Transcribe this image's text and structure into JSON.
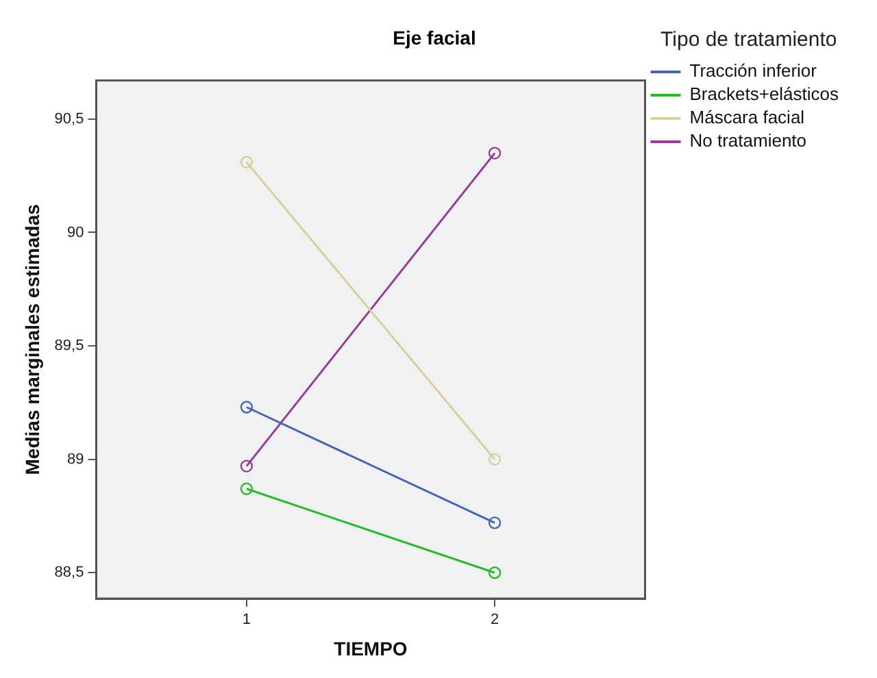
{
  "chart_data": {
    "type": "line",
    "title": "Eje facial",
    "xlabel": "TIEMPO",
    "ylabel": "Medias marginales estimadas",
    "legend_title": "Tipo de tratamiento",
    "x": [
      1,
      2
    ],
    "xlim": [
      0.394,
      2.606
    ],
    "xticks": [
      1,
      2
    ],
    "ylim": [
      88.386,
      90.67
    ],
    "yticks": [
      {
        "value": 88.5,
        "label": "88,5"
      },
      {
        "value": 89,
        "label": "89"
      },
      {
        "value": 89.5,
        "label": "89,5"
      },
      {
        "value": 90,
        "label": "90"
      },
      {
        "value": 90.5,
        "label": "90,5"
      }
    ],
    "series": [
      {
        "name": "Tracción inferior",
        "color": "#4a64b4",
        "values": [
          89.23,
          88.72
        ]
      },
      {
        "name": "Brackets+elásticos",
        "color": "#2cb82c",
        "values": [
          88.87,
          88.5
        ]
      },
      {
        "name": "Máscara facial",
        "color": "#d8d09a",
        "values": [
          90.31,
          89.0
        ]
      },
      {
        "name": "No tratamiento",
        "color": "#943c98",
        "values": [
          88.97,
          90.35
        ]
      }
    ],
    "marker": "circle",
    "line_style": "solid",
    "grid": false,
    "legend": "right"
  }
}
